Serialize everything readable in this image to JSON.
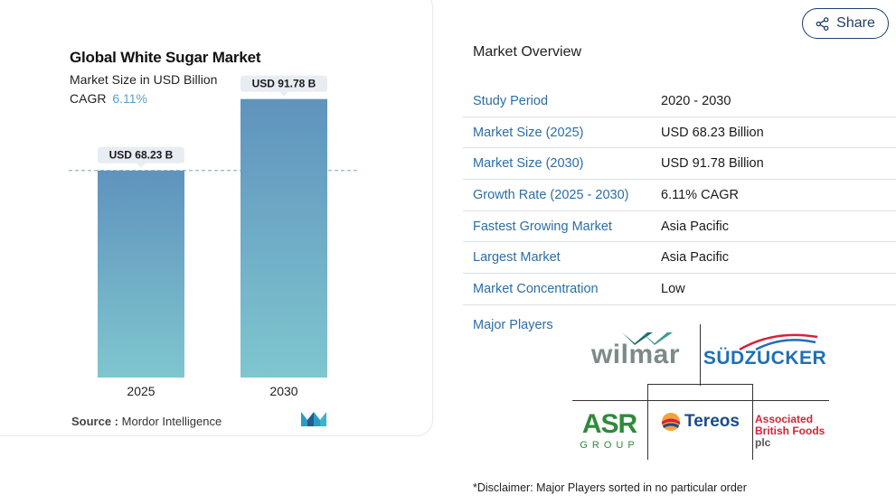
{
  "chart_data": {
    "type": "bar",
    "title": "Global White Sugar Market",
    "subtitle": "Market Size in USD Billion",
    "cagr_label": "CAGR",
    "cagr_value": "6.11%",
    "categories": [
      "2025",
      "2030"
    ],
    "values": [
      68.23,
      91.78
    ],
    "data_labels": [
      "USD 68.23 B",
      "USD 91.78 B"
    ],
    "ylim": [
      0,
      100
    ],
    "grid": false,
    "colors": {
      "bar_top": "#5f93bd",
      "bar_bottom": "#7fc6cf",
      "reference_line": "#8fb8d2"
    }
  },
  "source": {
    "label": "Source :",
    "value": "Mordor Intelligence"
  },
  "share": {
    "label": "Share"
  },
  "overview": {
    "title": "Market Overview",
    "rows": [
      {
        "key": "Study Period",
        "value": "2020 - 2030"
      },
      {
        "key": "Market Size (2025)",
        "value": "USD 68.23 Billion"
      },
      {
        "key": "Market Size (2030)",
        "value": "USD 91.78 Billion"
      },
      {
        "key": "Growth Rate (2025 - 2030)",
        "value": "6.11% CAGR"
      },
      {
        "key": "Fastest Growing Market",
        "value": "Asia Pacific"
      },
      {
        "key": "Largest Market",
        "value": "Asia Pacific"
      },
      {
        "key": "Market Concentration",
        "value": "Low"
      }
    ]
  },
  "players": {
    "label": "Major Players",
    "logos": {
      "wilmar": "wilmar",
      "sudzucker": "SÜDZUCKER",
      "asr": "ASR",
      "asr_group": "GROUP",
      "tereos": "Tereos",
      "abf_line1": "Associated",
      "abf_line2": "British Foods",
      "abf_line3": "plc"
    }
  },
  "disclaimer": "*Disclaimer: Major Players sorted in no particular order"
}
